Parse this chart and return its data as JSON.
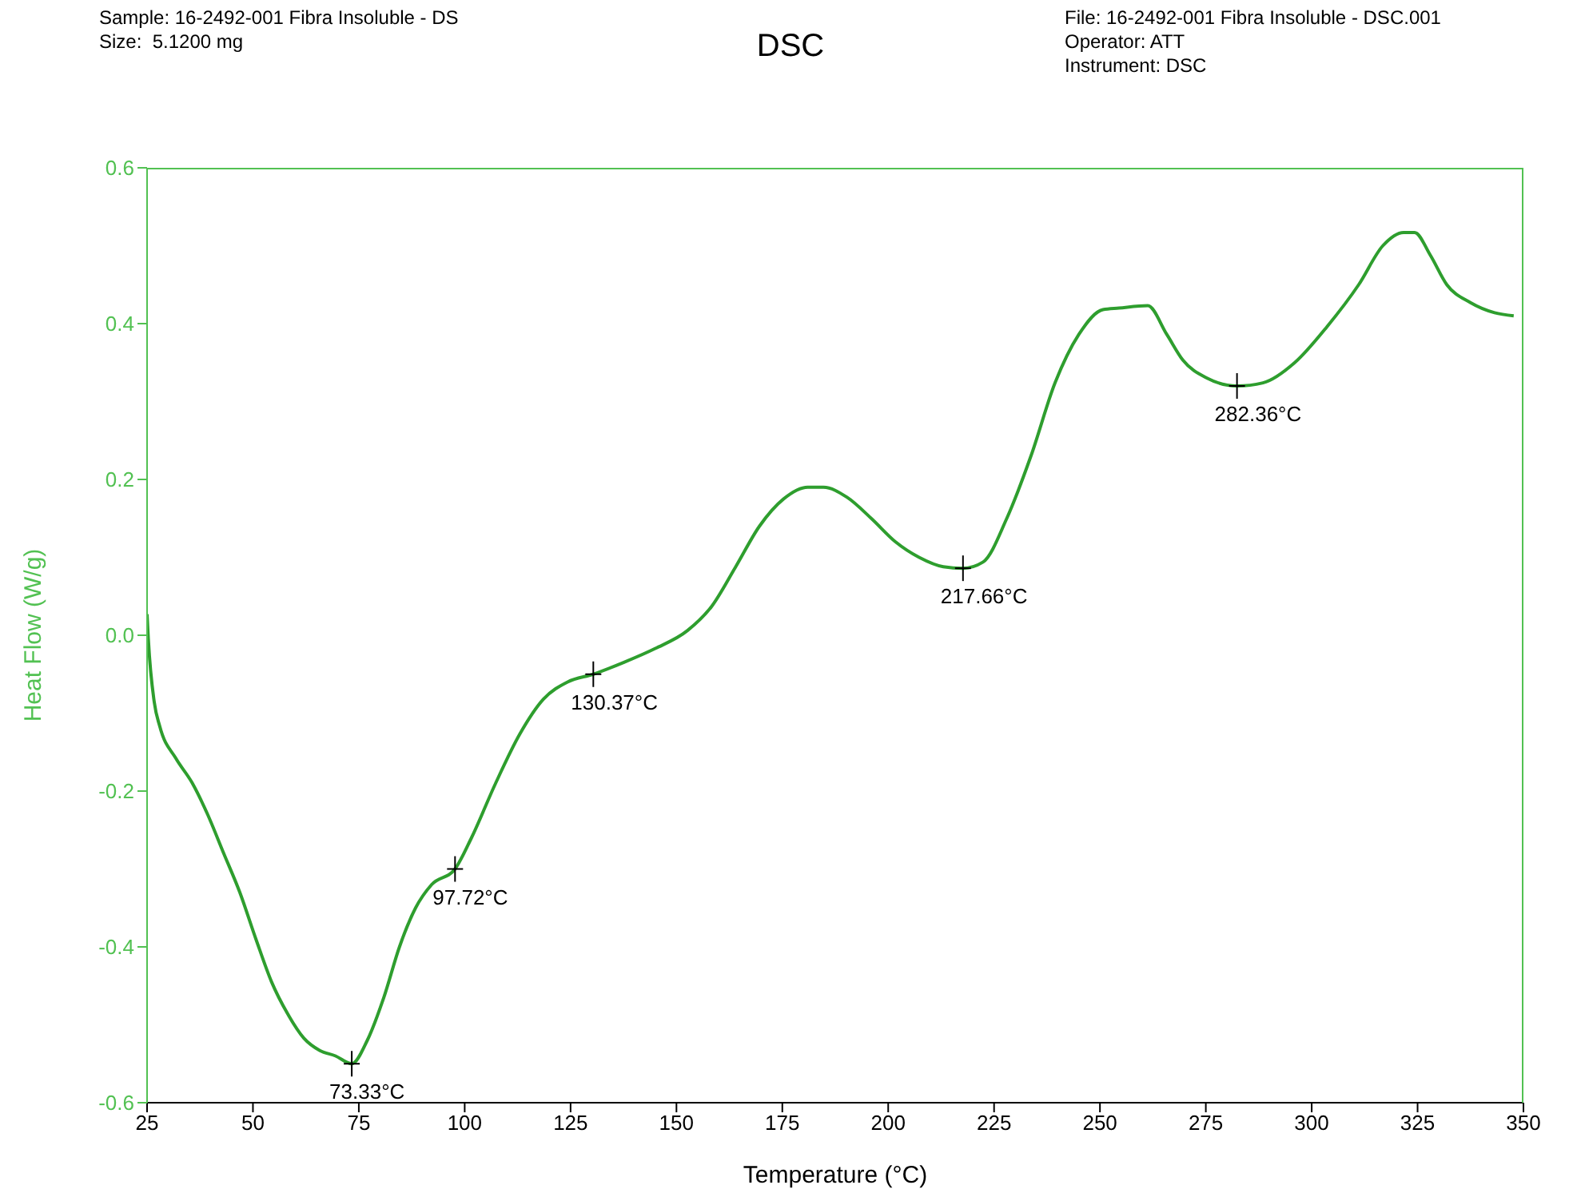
{
  "chart_data": {
    "type": "line",
    "title": "DSC",
    "xlabel": "Temperature (°C)",
    "ylabel": "Heat Flow (W/g)",
    "annotations": [
      "Sample: 16-2492-001 Fibra Insoluble - DS",
      "Size:  5.1200 mg",
      "File: 16-2492-001 Fibra Insoluble - DSC.001",
      "Operator: ATT",
      "Instrument: DSC",
      {
        "text": "73.33°C",
        "x": 73.33,
        "y": -0.55
      },
      {
        "text": "97.72°C",
        "x": 97.72,
        "y": -0.3
      },
      {
        "text": "130.37°C",
        "x": 130.37,
        "y": -0.05
      },
      {
        "text": "217.66°C",
        "x": 217.66,
        "y": 0.086
      },
      {
        "text": "282.36°C",
        "x": 282.36,
        "y": 0.32
      }
    ],
    "series": [
      {
        "color": "#2e9e2e",
        "x": [
          25,
          25.3,
          26.7,
          28,
          31.8,
          35.6,
          39.3,
          43.1,
          46.9,
          50.7,
          54.4,
          58.2,
          62,
          65.8,
          69.5,
          73.33,
          77,
          80.9,
          84.6,
          88.4,
          92.2,
          97.72,
          101.6,
          107.3,
          113,
          118.6,
          124.3,
          130.37,
          137.5,
          145,
          152.6,
          158.3,
          164,
          169.6,
          175.3,
          181,
          184.7,
          190.3,
          196,
          201.7,
          207.3,
          213,
          217.66,
          222.4,
          228,
          233.7,
          239.4,
          245,
          250.7,
          254.5,
          261.3,
          265.8,
          269.6,
          275.3,
          282.36,
          288.5,
          296,
          303.6,
          311.1,
          316.8,
          321.7,
          324.3,
          328,
          331.9,
          337.5,
          343.2,
          347.7
        ],
        "values": [
          0.027,
          -0.005,
          -0.086,
          -0.117,
          -0.158,
          -0.189,
          -0.23,
          -0.28,
          -0.33,
          -0.39,
          -0.445,
          -0.486,
          -0.517,
          -0.533,
          -0.54,
          -0.55,
          -0.52,
          -0.465,
          -0.4,
          -0.35,
          -0.32,
          -0.3,
          -0.26,
          -0.19,
          -0.127,
          -0.082,
          -0.06,
          -0.05,
          -0.035,
          -0.017,
          0.006,
          0.037,
          0.088,
          0.14,
          0.175,
          0.19,
          0.19,
          0.177,
          0.15,
          0.12,
          0.1,
          0.088,
          0.086,
          0.094,
          0.15,
          0.23,
          0.324,
          0.386,
          0.418,
          0.42,
          0.423,
          0.386,
          0.353,
          0.33,
          0.32,
          0.324,
          0.35,
          0.396,
          0.45,
          0.5,
          0.517,
          0.517,
          0.488,
          0.45,
          0.427,
          0.414,
          0.41
        ]
      }
    ],
    "xlim": [
      25,
      350
    ],
    "xticks": [
      25,
      50,
      75,
      100,
      125,
      150,
      175,
      200,
      225,
      250,
      275,
      300,
      325,
      350
    ],
    "ylim": [
      -0.6,
      0.6
    ],
    "yticks": [
      -0.6,
      -0.4,
      -0.2,
      {
        "value": 0,
        "label": "0.0"
      },
      0.2,
      0.4,
      0.6
    ],
    "grid": false,
    "legend": false,
    "marker": "none",
    "line_style": "solid"
  }
}
